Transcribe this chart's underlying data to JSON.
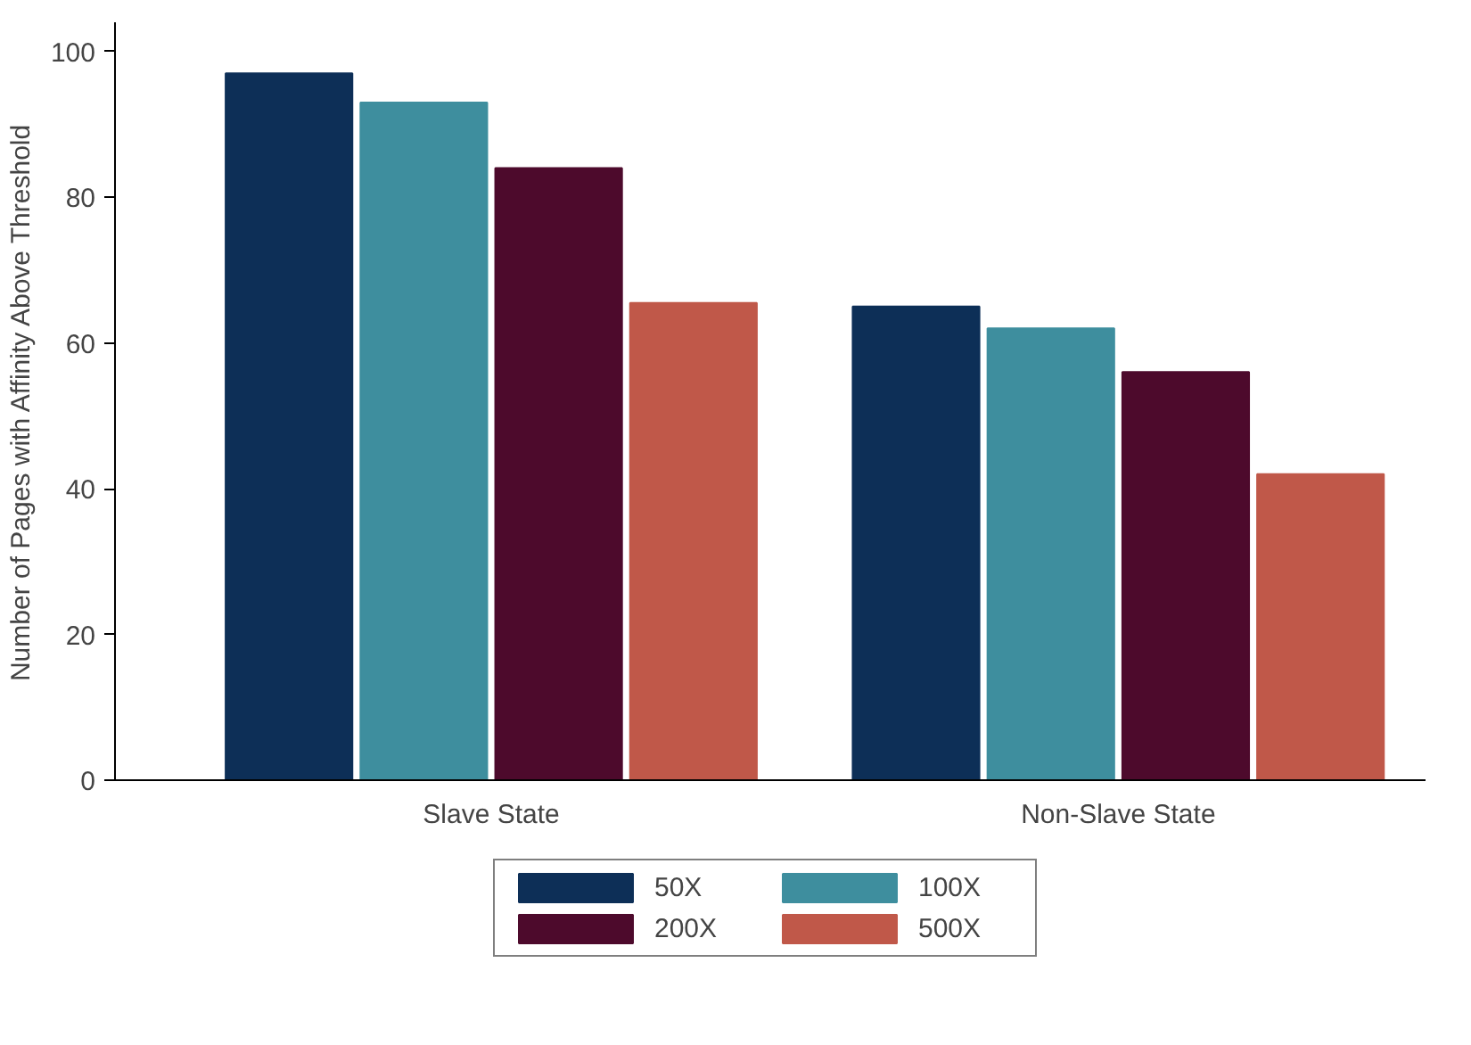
{
  "chart_data": {
    "type": "bar",
    "ylabel": "Number of Pages with Affinity Above Threshold",
    "categories": [
      "Slave State",
      "Non-Slave State"
    ],
    "series": [
      {
        "name": "50X",
        "color": "#0d2f57",
        "values": [
          97,
          65
        ]
      },
      {
        "name": "100X",
        "color": "#3e8e9e",
        "values": [
          93,
          62
        ]
      },
      {
        "name": "200X",
        "color": "#4d0a2c",
        "values": [
          84,
          56
        ]
      },
      {
        "name": "500X",
        "color": "#c05849",
        "values": [
          65.5,
          42
        ]
      }
    ],
    "ylim": [
      0,
      104
    ],
    "yticks": [
      0,
      20,
      40,
      60,
      80,
      100
    ],
    "grid": false,
    "legend": "bottom"
  }
}
